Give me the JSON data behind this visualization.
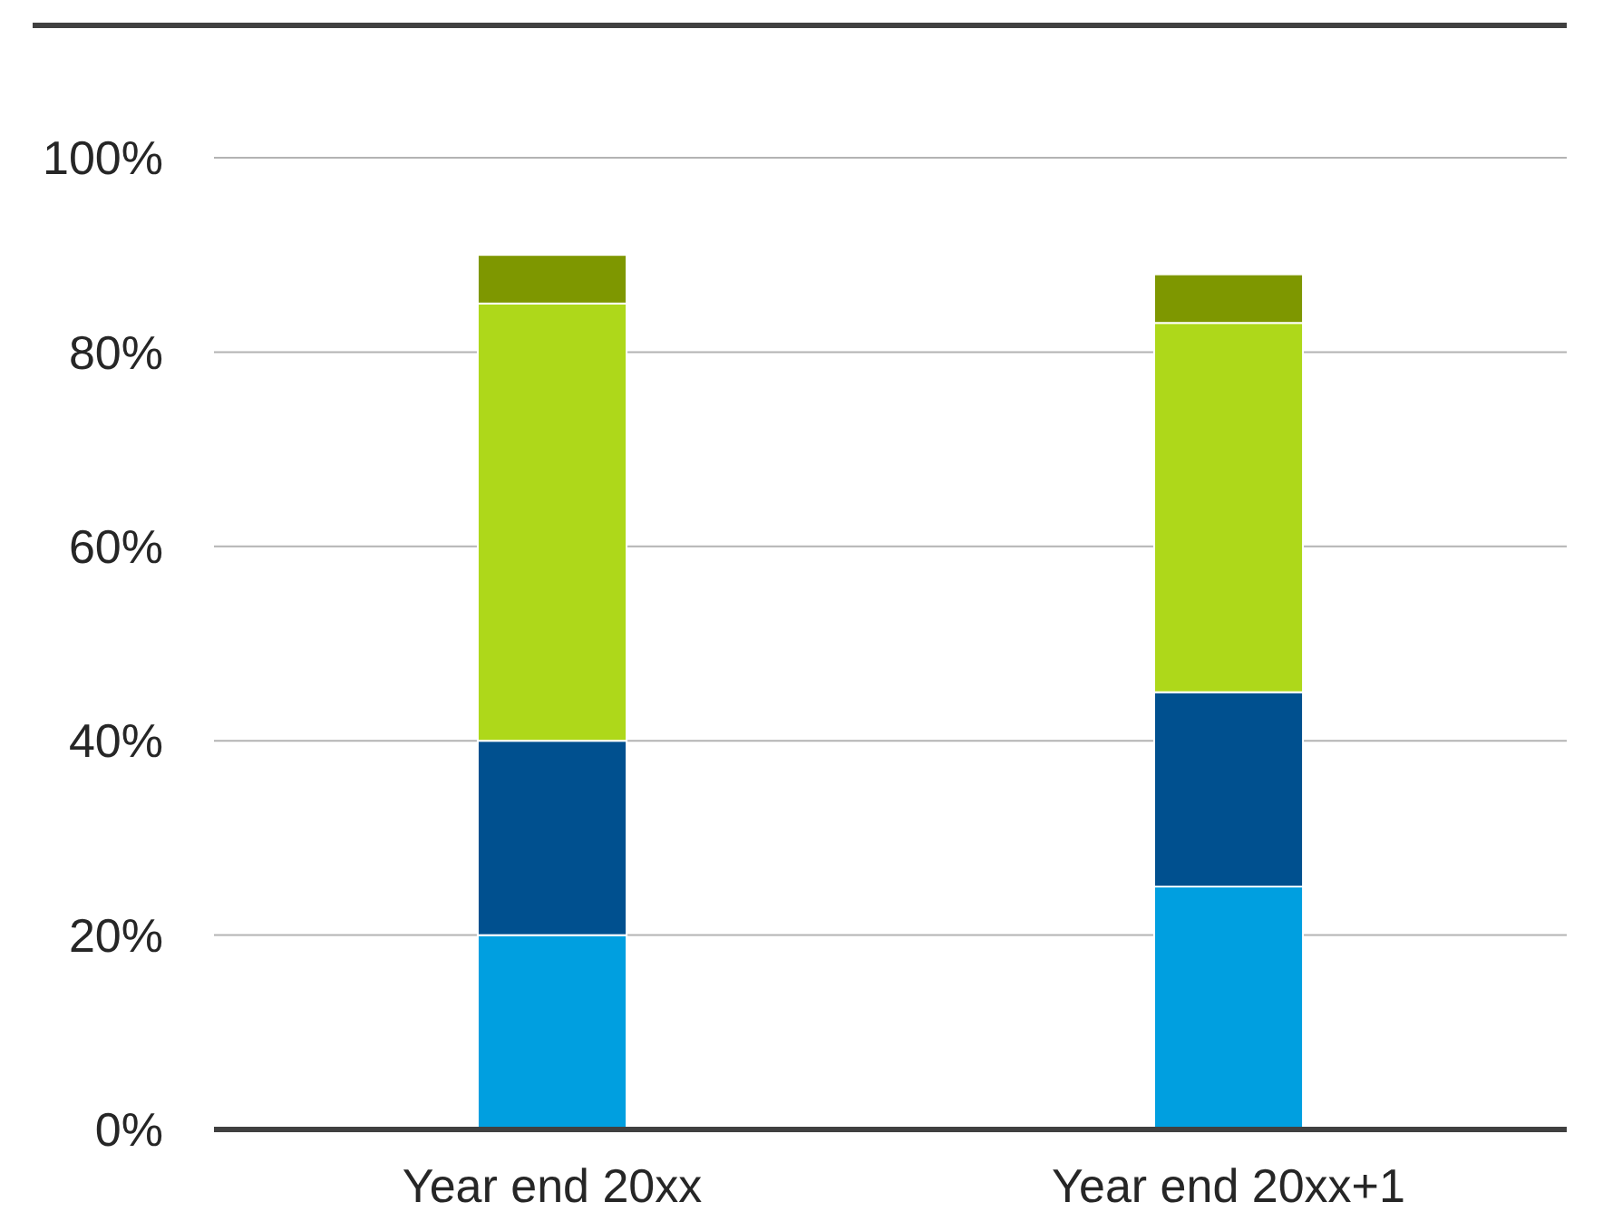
{
  "chart_data": {
    "type": "bar",
    "stacked": true,
    "categories": [
      "Year end 20xx",
      "Year end 20xx+1"
    ],
    "series": [
      {
        "color": "#009fe0",
        "values": [
          20,
          25
        ]
      },
      {
        "color": "#00508f",
        "values": [
          20,
          20
        ]
      },
      {
        "color": "#aed81a",
        "values": [
          45,
          38
        ]
      },
      {
        "color": "#7e9700",
        "values": [
          5,
          5
        ]
      }
    ],
    "ylim": [
      0,
      100
    ],
    "yticks": [
      {
        "value": 0,
        "label": "0%"
      },
      {
        "value": 20,
        "label": "20%"
      },
      {
        "value": 40,
        "label": "40%"
      },
      {
        "value": 60,
        "label": "60%"
      },
      {
        "value": 80,
        "label": "80%"
      },
      {
        "value": 100,
        "label": "100%"
      }
    ],
    "grid": "y"
  }
}
